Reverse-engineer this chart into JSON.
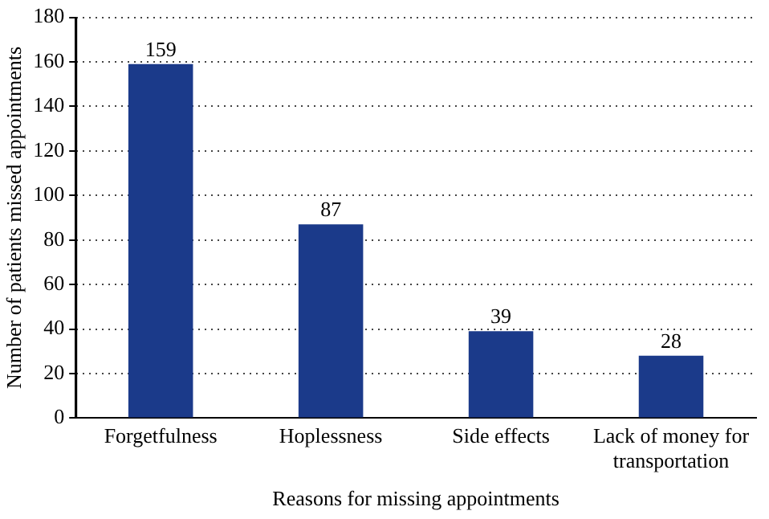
{
  "chart_data": {
    "type": "bar",
    "xlabel": "Reasons for missing appointments",
    "ylabel": "Number of patients missed appointments",
    "categories": [
      "Forgetfulness",
      "Hoplessness",
      "Side effects",
      "Lack of money for transportation"
    ],
    "values": [
      159,
      87,
      39,
      28
    ],
    "color": "#1b3a8a",
    "ylim": [
      0,
      180
    ],
    "yticks": [
      0,
      20,
      40,
      60,
      80,
      100,
      120,
      140,
      160,
      180
    ],
    "grid": "y",
    "data_labels": true,
    "legend": false
  }
}
